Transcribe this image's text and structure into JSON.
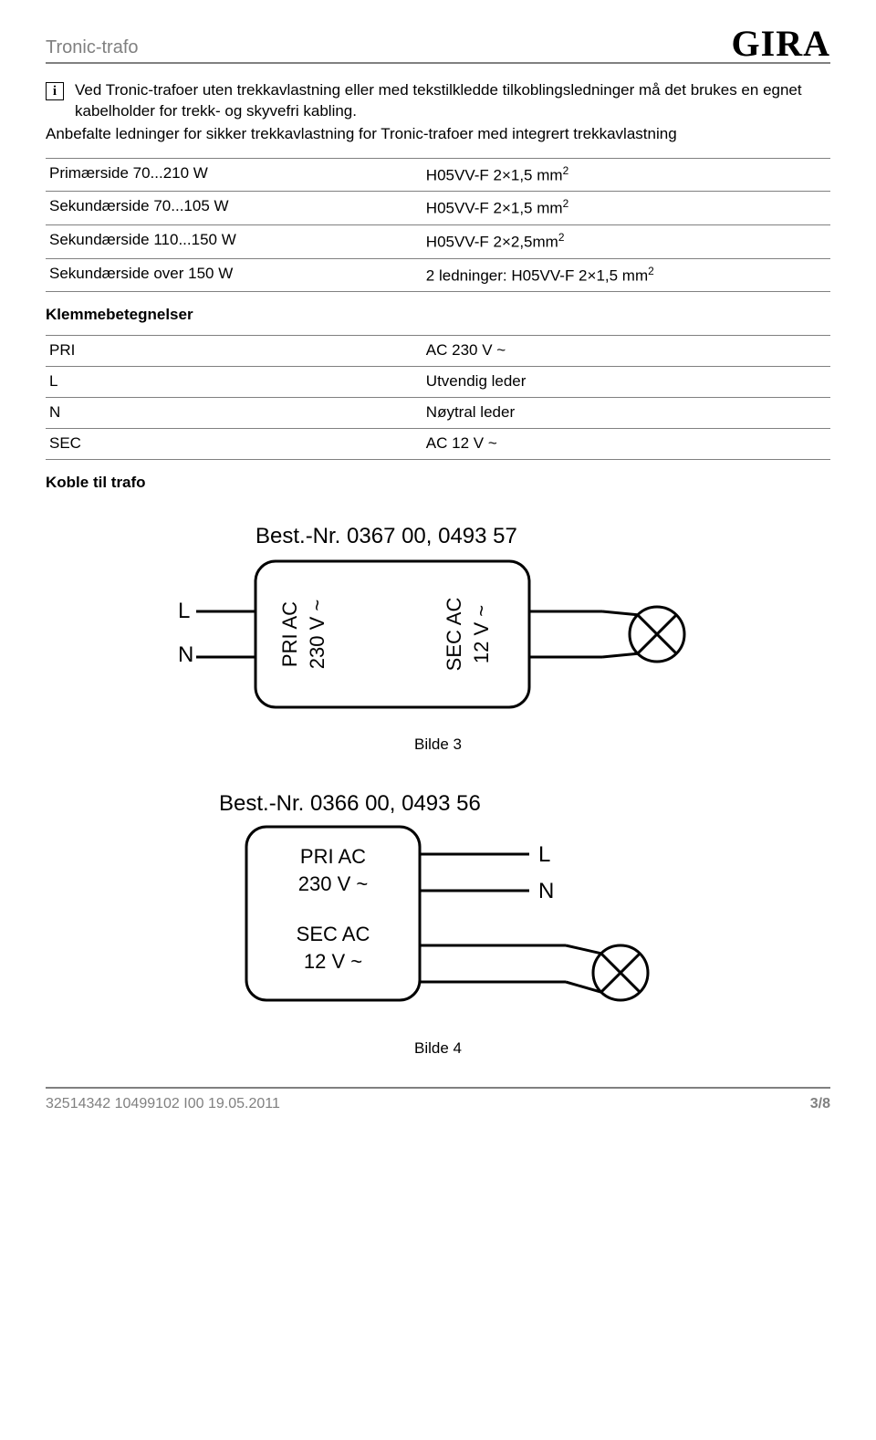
{
  "header": {
    "title": "Tronic-trafo",
    "logo": "GIRA"
  },
  "info": {
    "icon_letter": "i",
    "text": "Ved Tronic-trafoer uten trekkavlastning eller med tekstilkledde tilkoblingsledninger må det brukes en egnet kabelholder for trekk- og skyvefri kabling."
  },
  "subpara": "Anbefalte ledninger for sikker trekkavlastning for Tronic-trafoer med integrert trekkavlastning",
  "cable_table": {
    "rows": [
      {
        "label": "Primærside 70...210 W",
        "value": "H05VV-F 2×1,5 mm²"
      },
      {
        "label": "Sekundærside 70...105 W",
        "value": "H05VV-F 2×1,5 mm²"
      },
      {
        "label": "Sekundærside 110...150 W",
        "value": "H05VV-F 2×2,5mm²"
      },
      {
        "label": "Sekundærside over 150 W",
        "value": "2 ledninger: H05VV-F 2×1,5 mm²"
      }
    ]
  },
  "terminals_heading": "Klemmebetegnelser",
  "terminals_table": {
    "rows": [
      {
        "label": "PRI",
        "value": "AC 230 V ~"
      },
      {
        "label": "L",
        "value": "Utvendig leder"
      },
      {
        "label": "N",
        "value": "Nøytral leder"
      },
      {
        "label": "SEC",
        "value": "AC 12 V ~"
      }
    ]
  },
  "connect_heading": "Koble til trafo",
  "diagram1": {
    "bestnr": "Best.-Nr. 0367 00, 0493 57",
    "L": "L",
    "N": "N",
    "pri_label": "PRI AC",
    "pri_v": "230 V ~",
    "sec_label": "SEC AC",
    "sec_v": "12 V ~",
    "caption": "Bilde 3",
    "stroke": "#000000",
    "fill": "#ffffff",
    "font": "Arial",
    "fontsize": 24,
    "fontsize_small": 22,
    "box_radius": 22
  },
  "diagram2": {
    "bestnr": "Best.-Nr. 0366 00, 0493 56",
    "L": "L",
    "N": "N",
    "pri_label": "PRI AC",
    "pri_v": "230 V ~",
    "sec_label": "SEC AC",
    "sec_v": "12 V ~",
    "caption": "Bilde 4",
    "stroke": "#000000",
    "fill": "#ffffff",
    "font": "Arial",
    "fontsize": 24,
    "fontsize_small": 22,
    "box_radius": 22
  },
  "footer": {
    "left": "32514342   10499102 I00   19.05.2011",
    "right": "3/8"
  }
}
